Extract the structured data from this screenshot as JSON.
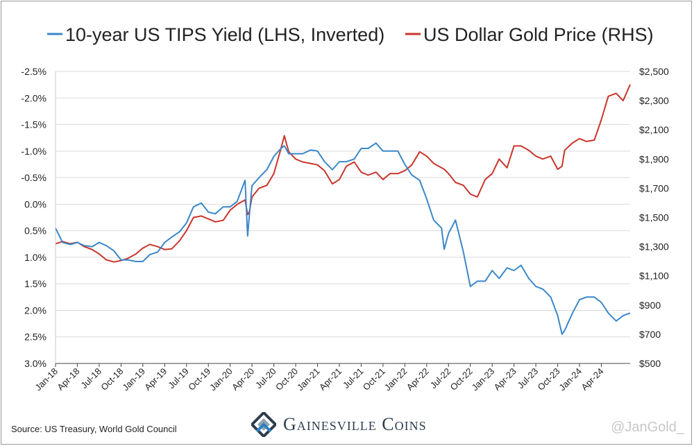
{
  "source_note": "Source: US Treasury, World Gold Council",
  "brand": {
    "name": "Gainesville Coins",
    "logo_colors": [
      "#2d3d4d",
      "#8fa3b3",
      "#2f7dbf"
    ]
  },
  "watermark": "@JanGold_",
  "chart_data": {
    "type": "line",
    "legend_position": "top",
    "grid": "horizontal",
    "x_tick_labels": [
      "Jan-18",
      "Apr-18",
      "Jul-18",
      "Oct-18",
      "Jan-19",
      "Apr-19",
      "Jul-19",
      "Oct-19",
      "Jan-20",
      "Apr-20",
      "Jul-20",
      "Oct-20",
      "Jan-21",
      "Apr-21",
      "Jul-21",
      "Oct-21",
      "Jan-22",
      "Apr-22",
      "Jul-22",
      "Oct-22",
      "Jan-23",
      "Apr-23",
      "Jul-23",
      "Oct-23",
      "Jan-24",
      "Apr-24"
    ],
    "x_range": [
      2018.0,
      2024.58
    ],
    "left_axis": {
      "label": "10-year US TIPS Yield (LHS, Inverted)",
      "inverted": true,
      "range": [
        -2.5,
        3.0
      ],
      "ticks": [
        -2.5,
        -2.0,
        -1.5,
        -1.0,
        -0.5,
        0.0,
        0.5,
        1.0,
        1.5,
        2.0,
        2.5,
        3.0
      ],
      "tick_labels": [
        "-2.5%",
        "-2.0%",
        "-1.5%",
        "-1.0%",
        "-0.5%",
        "0.0%",
        "0.5%",
        "1.0%",
        "1.5%",
        "2.0%",
        "2.5%",
        "3.0%"
      ]
    },
    "right_axis": {
      "label": "US Dollar Gold Price (RHS)",
      "range": [
        500,
        2500
      ],
      "ticks": [
        500,
        700,
        900,
        1100,
        1300,
        1500,
        1700,
        1900,
        2100,
        2300,
        2500
      ],
      "tick_labels": [
        "$500",
        "$700",
        "$900",
        "$1,100",
        "$1,300",
        "$1,500",
        "$1,700",
        "$1,900",
        "$2,100",
        "$2,300",
        "$2,500"
      ]
    },
    "series": [
      {
        "name": "10-year US TIPS Yield (LHS, Inverted)",
        "axis": "left",
        "color": "#3a87c9",
        "x": [
          2018.0,
          2018.08,
          2018.17,
          2018.25,
          2018.33,
          2018.42,
          2018.5,
          2018.58,
          2018.67,
          2018.75,
          2018.83,
          2018.92,
          2019.0,
          2019.08,
          2019.17,
          2019.25,
          2019.33,
          2019.42,
          2019.5,
          2019.58,
          2019.67,
          2019.75,
          2019.83,
          2019.92,
          2020.0,
          2020.08,
          2020.17,
          2020.2,
          2020.22,
          2020.25,
          2020.33,
          2020.42,
          2020.5,
          2020.58,
          2020.62,
          2020.67,
          2020.75,
          2020.83,
          2020.92,
          2021.0,
          2021.08,
          2021.17,
          2021.25,
          2021.33,
          2021.42,
          2021.5,
          2021.58,
          2021.67,
          2021.75,
          2021.83,
          2021.92,
          2022.0,
          2022.08,
          2022.17,
          2022.25,
          2022.33,
          2022.42,
          2022.45,
          2022.5,
          2022.58,
          2022.67,
          2022.75,
          2022.83,
          2022.92,
          2023.0,
          2023.08,
          2023.17,
          2023.25,
          2023.33,
          2023.42,
          2023.5,
          2023.58,
          2023.67,
          2023.75,
          2023.8,
          2023.83,
          2023.92,
          2024.0,
          2024.08,
          2024.17,
          2024.25,
          2024.33,
          2024.42,
          2024.5,
          2024.58
        ],
        "y": [
          0.45,
          0.72,
          0.76,
          0.72,
          0.78,
          0.8,
          0.72,
          0.78,
          0.88,
          1.05,
          1.05,
          1.08,
          1.08,
          0.95,
          0.9,
          0.72,
          0.62,
          0.52,
          0.35,
          0.05,
          -0.02,
          0.15,
          0.18,
          0.05,
          0.05,
          -0.05,
          -0.45,
          0.6,
          0.2,
          -0.35,
          -0.5,
          -0.65,
          -0.9,
          -1.05,
          -1.1,
          -0.95,
          -0.95,
          -0.95,
          -1.02,
          -1.0,
          -0.8,
          -0.65,
          -0.8,
          -0.8,
          -0.85,
          -1.05,
          -1.05,
          -1.15,
          -1.0,
          -1.0,
          -1.0,
          -0.75,
          -0.55,
          -0.45,
          -0.1,
          0.3,
          0.45,
          0.85,
          0.55,
          0.3,
          0.9,
          1.55,
          1.45,
          1.45,
          1.25,
          1.4,
          1.2,
          1.25,
          1.15,
          1.4,
          1.55,
          1.6,
          1.75,
          2.1,
          2.45,
          2.38,
          2.05,
          1.8,
          1.75,
          1.75,
          1.85,
          2.05,
          2.2,
          2.1,
          2.05
        ]
      },
      {
        "name": "US Dollar Gold Price (RHS)",
        "axis": "right",
        "color": "#c9352b",
        "x": [
          2018.0,
          2018.08,
          2018.17,
          2018.25,
          2018.33,
          2018.42,
          2018.5,
          2018.58,
          2018.67,
          2018.75,
          2018.83,
          2018.92,
          2019.0,
          2019.08,
          2019.17,
          2019.25,
          2019.33,
          2019.42,
          2019.5,
          2019.58,
          2019.67,
          2019.75,
          2019.83,
          2019.92,
          2020.0,
          2020.08,
          2020.17,
          2020.2,
          2020.22,
          2020.25,
          2020.33,
          2020.42,
          2020.5,
          2020.58,
          2020.62,
          2020.67,
          2020.75,
          2020.83,
          2020.92,
          2021.0,
          2021.08,
          2021.17,
          2021.25,
          2021.33,
          2021.42,
          2021.5,
          2021.58,
          2021.67,
          2021.75,
          2021.83,
          2021.92,
          2022.0,
          2022.08,
          2022.17,
          2022.25,
          2022.33,
          2022.42,
          2022.45,
          2022.5,
          2022.58,
          2022.67,
          2022.75,
          2022.83,
          2022.92,
          2023.0,
          2023.08,
          2023.17,
          2023.25,
          2023.33,
          2023.42,
          2023.5,
          2023.58,
          2023.67,
          2023.75,
          2023.8,
          2023.83,
          2023.92,
          2024.0,
          2024.08,
          2024.17,
          2024.25,
          2024.33,
          2024.42,
          2024.5,
          2024.58
        ],
        "y": [
          1320,
          1335,
          1320,
          1330,
          1300,
          1280,
          1250,
          1210,
          1195,
          1205,
          1220,
          1250,
          1290,
          1315,
          1300,
          1280,
          1285,
          1340,
          1410,
          1500,
          1510,
          1490,
          1470,
          1480,
          1550,
          1590,
          1620,
          1520,
          1540,
          1640,
          1700,
          1720,
          1800,
          1970,
          2060,
          1950,
          1900,
          1880,
          1870,
          1860,
          1820,
          1730,
          1760,
          1850,
          1880,
          1810,
          1790,
          1810,
          1760,
          1800,
          1800,
          1820,
          1860,
          1950,
          1920,
          1870,
          1840,
          1830,
          1800,
          1740,
          1720,
          1660,
          1640,
          1760,
          1800,
          1900,
          1840,
          1990,
          1990,
          1960,
          1920,
          1900,
          1920,
          1830,
          1850,
          1960,
          2010,
          2040,
          2020,
          2030,
          2170,
          2330,
          2350,
          2300,
          2410
        ]
      }
    ]
  }
}
